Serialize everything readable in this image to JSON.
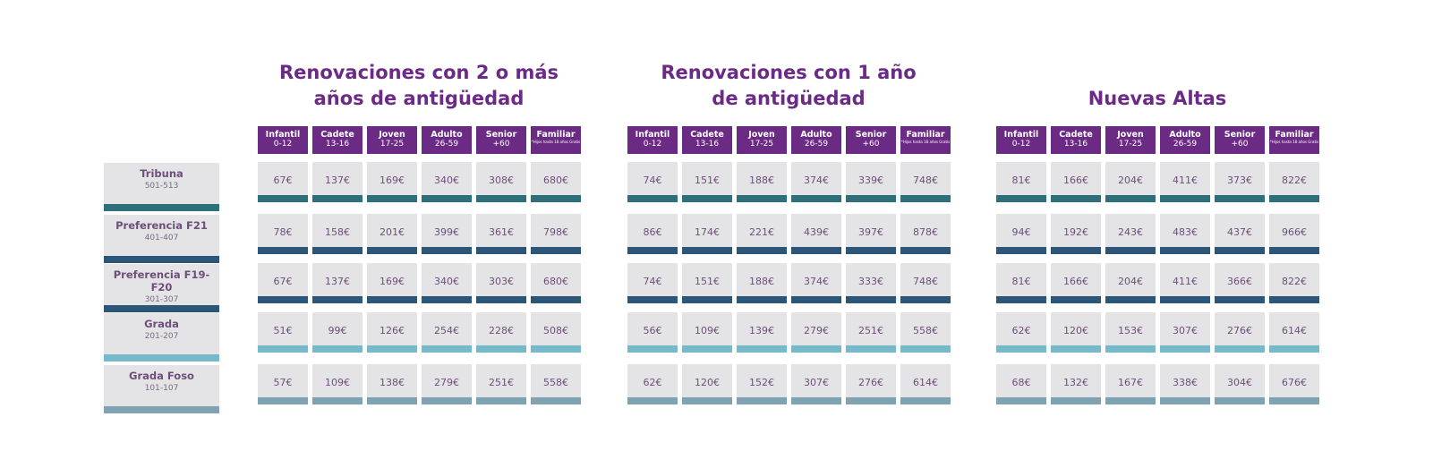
{
  "groups": [
    {
      "title_lines": [
        "Renovaciones con 2 o más",
        "años de antigüedad"
      ]
    },
    {
      "title_lines": [
        "Renovaciones con 1 año",
        "de antigüedad"
      ]
    },
    {
      "title_lines": [
        "",
        "Nuevas Altas"
      ]
    }
  ],
  "categories": [
    {
      "name": "Infantil",
      "range": "0-12"
    },
    {
      "name": "Cadete",
      "range": "13-16"
    },
    {
      "name": "Joven",
      "range": "17-25"
    },
    {
      "name": "Adulto",
      "range": "26-59"
    },
    {
      "name": "Senior",
      "range": "+60"
    },
    {
      "name": "Familiar",
      "note": "*Hijos hasta 18 años Gratis"
    }
  ],
  "rows": [
    {
      "label": "Tribuna",
      "sub": "501-513",
      "color": "#2e6f7c",
      "prices": [
        [
          "67€",
          "137€",
          "169€",
          "340€",
          "308€",
          "680€"
        ],
        [
          "74€",
          "151€",
          "188€",
          "374€",
          "339€",
          "748€"
        ],
        [
          "81€",
          "166€",
          "204€",
          "411€",
          "373€",
          "822€"
        ]
      ]
    },
    {
      "label": "Preferencia F21",
      "sub": "401-407",
      "color": "#2c5677",
      "prices": [
        [
          "78€",
          "158€",
          "201€",
          "399€",
          "361€",
          "798€"
        ],
        [
          "86€",
          "174€",
          "221€",
          "439€",
          "397€",
          "878€"
        ],
        [
          "94€",
          "192€",
          "243€",
          "483€",
          "437€",
          "966€"
        ]
      ]
    },
    {
      "label": "Preferencia F19-F20",
      "sub": "301-307",
      "color": "#2c5677",
      "prices": [
        [
          "67€",
          "137€",
          "169€",
          "340€",
          "303€",
          "680€"
        ],
        [
          "74€",
          "151€",
          "188€",
          "374€",
          "333€",
          "748€"
        ],
        [
          "81€",
          "166€",
          "204€",
          "411€",
          "366€",
          "822€"
        ]
      ]
    },
    {
      "label": "Grada",
      "sub": "201-207",
      "color": "#76b9ca",
      "prices": [
        [
          "51€",
          "99€",
          "126€",
          "254€",
          "228€",
          "508€"
        ],
        [
          "56€",
          "109€",
          "139€",
          "279€",
          "251€",
          "558€"
        ],
        [
          "62€",
          "120€",
          "153€",
          "307€",
          "276€",
          "614€"
        ]
      ]
    },
    {
      "label": "Grada Foso",
      "sub": "101-107",
      "color": "#7fa3b2",
      "prices": [
        [
          "57€",
          "109€",
          "138€",
          "279€",
          "251€",
          "558€"
        ],
        [
          "62€",
          "120€",
          "152€",
          "307€",
          "276€",
          "614€"
        ],
        [
          "68€",
          "132€",
          "167€",
          "338€",
          "304€",
          "676€"
        ]
      ]
    }
  ]
}
